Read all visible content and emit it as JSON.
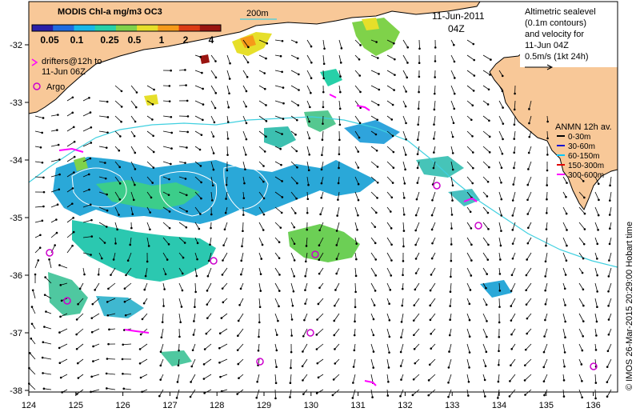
{
  "map_title": {
    "product": "MODIS Chl-a mg/m3 OC3",
    "date": "11-Jun-2011",
    "time": "04Z"
  },
  "colorbar": {
    "tick_labels": [
      "0.05",
      "0.1",
      "0.25",
      "0.5",
      "1",
      "2",
      "4"
    ],
    "colors": [
      "#2a1fa8",
      "#1f6be0",
      "#18b7e8",
      "#27d0a8",
      "#7fd24a",
      "#e6df2a",
      "#f59a1a",
      "#dc3b14",
      "#9a1410"
    ]
  },
  "isobath_label": "200m",
  "legend_drifters": {
    "line1": "drifters@12h to",
    "line2": "11-Jun 06Z",
    "color": "#ff00ff"
  },
  "legend_argo": {
    "label": "Argo",
    "color": "#cc00cc"
  },
  "altimetry_note": {
    "lines": [
      "Altimetric sealevel",
      "(0.1m contours)",
      "and velocity for",
      "11-Jun 04Z",
      "0.5m/s (1kt 24h)"
    ]
  },
  "anmn_legend": {
    "title": "ANMN 12h av.",
    "items": [
      {
        "label": "0-30m",
        "color": "#000000"
      },
      {
        "label": "30-60m",
        "color": "#1010d0"
      },
      {
        "label": "60-150m",
        "color": "#00c8ff"
      },
      {
        "label": "150-300m",
        "color": "#e00000"
      },
      {
        "label": "300-600m",
        "color": "#ff00ff"
      }
    ]
  },
  "axes": {
    "x_ticks": [
      "124",
      "125",
      "126",
      "127",
      "128",
      "129",
      "130",
      "131",
      "132",
      "133",
      "134",
      "135",
      "136"
    ],
    "y_ticks": [
      "-32",
      "-33",
      "-34",
      "-35",
      "-36",
      "-37",
      "-38"
    ]
  },
  "credit": "© IMOS 26-Mar-2015 20:29:00 Hobart time",
  "colors": {
    "land": "#f8c898",
    "isobath": "#40d0e0",
    "arrow": "#000000"
  }
}
